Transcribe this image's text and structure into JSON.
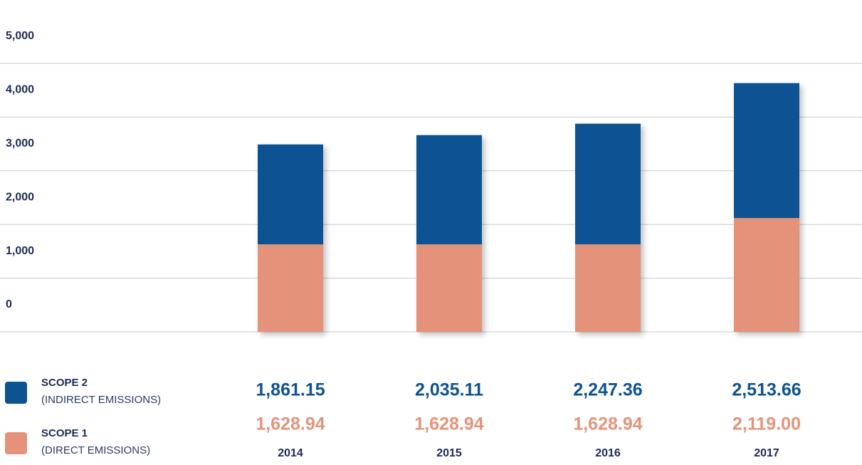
{
  "chart_data": {
    "type": "stacked-bar",
    "categories": [
      "2014",
      "2015",
      "2016",
      "2017"
    ],
    "series": [
      {
        "name": "SCOPE 1",
        "description": "(DIRECT EMISSIONS)",
        "color": "#e4937a",
        "values": [
          1628.94,
          1628.94,
          1628.94,
          2119.0
        ],
        "value_labels": [
          "1,628.94",
          "1,628.94",
          "1,628.94",
          "2,119.00"
        ]
      },
      {
        "name": "SCOPE 2",
        "description": "(INDIRECT EMISSIONS)",
        "color": "#0d5293",
        "values": [
          1861.15,
          2035.11,
          2247.36,
          2513.66
        ],
        "value_labels": [
          "1,861.15",
          "2,035.11",
          "2,247.36",
          "2,513.66"
        ]
      }
    ],
    "ylim": [
      0,
      5000
    ],
    "yticks": [
      0,
      {
        "value": 1000,
        "label": "1,000"
      },
      {
        "value": 2000,
        "label": "2,000"
      },
      {
        "value": 3000,
        "label": "3,000"
      },
      {
        "value": 4000,
        "label": "4,000"
      },
      {
        "value": 5000,
        "label": "5,000"
      }
    ],
    "grid": true
  }
}
